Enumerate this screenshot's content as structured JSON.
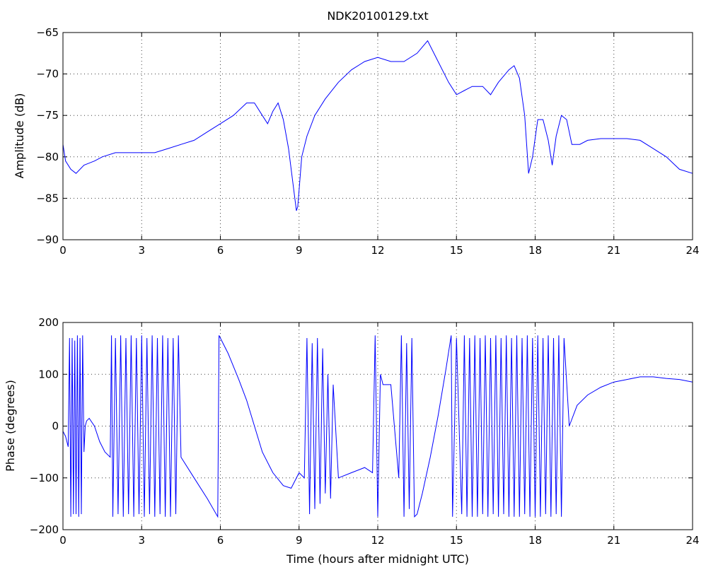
{
  "chart_data": [
    {
      "type": "line",
      "title": "NDK20100129.txt",
      "xlabel": "",
      "ylabel": "Amplitude (dB)",
      "xlim": [
        0,
        24
      ],
      "ylim": [
        -90,
        -65
      ],
      "xticks": [
        0,
        3,
        6,
        9,
        12,
        15,
        18,
        21,
        24
      ],
      "yticks": [
        -90,
        -85,
        -80,
        -75,
        -70,
        -65
      ],
      "grid": true,
      "series": [
        {
          "color": "#0000ff",
          "x": [
            0,
            0.1,
            0.3,
            0.5,
            0.8,
            1.2,
            1.5,
            2.0,
            2.5,
            3.0,
            3.5,
            4.0,
            4.5,
            5.0,
            5.5,
            6.0,
            6.5,
            7.0,
            7.3,
            7.6,
            7.8,
            8.0,
            8.2,
            8.4,
            8.6,
            8.8,
            8.9,
            8.95,
            9.0,
            9.1,
            9.3,
            9.6,
            10.0,
            10.5,
            11.0,
            11.5,
            12.0,
            12.5,
            13.0,
            13.5,
            13.9,
            14.3,
            14.7,
            15.0,
            15.3,
            15.6,
            16.0,
            16.3,
            16.6,
            17.0,
            17.2,
            17.4,
            17.6,
            17.75,
            17.9,
            18.1,
            18.3,
            18.5,
            18.65,
            18.8,
            19.0,
            19.2,
            19.4,
            19.7,
            20.0,
            20.5,
            21.0,
            21.5,
            22.0,
            22.5,
            23.0,
            23.5,
            24.0
          ],
          "y": [
            -78.5,
            -80.5,
            -81.5,
            -82.0,
            -81.0,
            -80.5,
            -80.0,
            -79.5,
            -79.5,
            -79.5,
            -79.5,
            -79.0,
            -78.5,
            -78.0,
            -77.0,
            -76.0,
            -75.0,
            -73.5,
            -73.5,
            -75.0,
            -76.0,
            -74.5,
            -73.5,
            -75.5,
            -79.0,
            -84.0,
            -86.5,
            -86.0,
            -84.0,
            -80.0,
            -77.5,
            -75.0,
            -73.0,
            -71.0,
            -69.5,
            -68.5,
            -68.0,
            -68.5,
            -68.5,
            -67.5,
            -66.0,
            -68.5,
            -71.0,
            -72.5,
            -72.0,
            -71.5,
            -71.5,
            -72.5,
            -71.0,
            -69.5,
            -69.0,
            -70.5,
            -75.0,
            -82.0,
            -80.0,
            -75.5,
            -75.5,
            -78.0,
            -81.0,
            -77.5,
            -75.0,
            -75.5,
            -78.5,
            -78.5,
            -78.0,
            -77.8,
            -77.8,
            -77.8,
            -78.0,
            -79.0,
            -80.0,
            -81.5,
            -82.0
          ]
        }
      ]
    },
    {
      "type": "line",
      "title": "",
      "xlabel": "Time (hours after midnight UTC)",
      "ylabel": "Phase (degrees)",
      "xlim": [
        0,
        24
      ],
      "ylim": [
        -200,
        200
      ],
      "xticks": [
        0,
        3,
        6,
        9,
        12,
        15,
        18,
        21,
        24
      ],
      "yticks": [
        -200,
        -100,
        0,
        100,
        200
      ],
      "grid": true,
      "series": [
        {
          "color": "#0000ff",
          "x": [
            0,
            0.1,
            0.2,
            0.25,
            0.3,
            0.35,
            0.4,
            0.45,
            0.5,
            0.55,
            0.6,
            0.65,
            0.7,
            0.75,
            0.8,
            0.85,
            0.9,
            1.0,
            1.2,
            1.4,
            1.6,
            1.8,
            1.85,
            1.9,
            2.0,
            2.1,
            2.2,
            2.3,
            2.4,
            2.5,
            2.6,
            2.7,
            2.8,
            2.9,
            3.0,
            3.1,
            3.2,
            3.3,
            3.4,
            3.5,
            3.6,
            3.7,
            3.8,
            3.9,
            4.0,
            4.1,
            4.2,
            4.3,
            4.4,
            4.5,
            5.0,
            5.5,
            5.9,
            5.95,
            6.0,
            6.3,
            6.7,
            7.0,
            7.3,
            7.6,
            8.0,
            8.4,
            8.7,
            9.0,
            9.2,
            9.3,
            9.4,
            9.5,
            9.6,
            9.7,
            9.8,
            9.9,
            10.0,
            10.1,
            10.2,
            10.3,
            10.5,
            11.0,
            11.5,
            11.8,
            11.9,
            12.0,
            12.1,
            12.2,
            12.5,
            12.8,
            12.9,
            13.0,
            13.1,
            13.2,
            13.3,
            13.4,
            13.5,
            13.7,
            14.0,
            14.3,
            14.6,
            14.8,
            14.85,
            15.0,
            15.2,
            15.3,
            15.4,
            15.5,
            15.6,
            15.7,
            15.8,
            15.9,
            16.0,
            16.1,
            16.2,
            16.3,
            16.4,
            16.5,
            16.6,
            16.7,
            16.8,
            16.9,
            17.0,
            17.1,
            17.2,
            17.3,
            17.4,
            17.5,
            17.6,
            17.7,
            17.8,
            17.9,
            18.0,
            18.1,
            18.2,
            18.3,
            18.4,
            18.5,
            18.6,
            18.7,
            18.8,
            18.9,
            19.0,
            19.1,
            19.3,
            19.6,
            20.0,
            20.5,
            21.0,
            21.5,
            22.0,
            22.5,
            23.0,
            23.5,
            24.0
          ],
          "y": [
            -10,
            -20,
            -40,
            170,
            -175,
            170,
            -170,
            165,
            -170,
            175,
            -175,
            170,
            -170,
            175,
            -50,
            0,
            10,
            15,
            0,
            -30,
            -50,
            -60,
            175,
            -175,
            170,
            -170,
            175,
            -175,
            170,
            -170,
            175,
            -175,
            170,
            -170,
            175,
            -175,
            170,
            -170,
            175,
            -175,
            170,
            -170,
            175,
            -175,
            170,
            -175,
            170,
            -170,
            175,
            -60,
            -100,
            -140,
            -175,
            175,
            170,
            140,
            90,
            50,
            0,
            -50,
            -90,
            -115,
            -120,
            -90,
            -100,
            170,
            -170,
            160,
            -160,
            170,
            -150,
            150,
            -130,
            100,
            -140,
            80,
            -100,
            -90,
            -80,
            -90,
            175,
            -175,
            100,
            80,
            80,
            -100,
            175,
            -175,
            160,
            -160,
            170,
            -175,
            -170,
            -130,
            -60,
            20,
            110,
            175,
            -175,
            170,
            -170,
            175,
            -175,
            170,
            -175,
            175,
            -175,
            170,
            -170,
            175,
            -175,
            170,
            -170,
            175,
            -175,
            170,
            -170,
            175,
            -175,
            170,
            -175,
            175,
            -175,
            170,
            -170,
            175,
            -175,
            170,
            -175,
            175,
            -175,
            170,
            -170,
            175,
            -175,
            170,
            -170,
            175,
            -175,
            170,
            0,
            40,
            60,
            75,
            85,
            90,
            95,
            95,
            92,
            90,
            85
          ]
        }
      ]
    }
  ]
}
